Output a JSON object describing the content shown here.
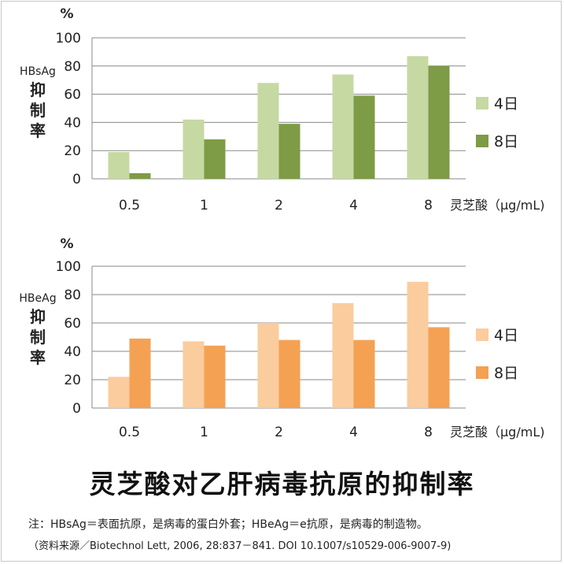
{
  "chart_data": [
    {
      "type": "bar",
      "unit_label": "%",
      "ylabel": "HBsAg 抑制率",
      "ylabel_top": "HBsAg",
      "ylabel_chars": [
        "抑",
        "制",
        "率"
      ],
      "xlabel": "灵芝酸（μg/mL)",
      "categories": [
        "0.5",
        "1",
        "2",
        "4",
        "8"
      ],
      "series": [
        {
          "name": "4日",
          "values": [
            19,
            42,
            68,
            74,
            87
          ],
          "color": "#c6d9a3"
        },
        {
          "name": "8日",
          "values": [
            4,
            28,
            39,
            59,
            80
          ],
          "color": "#7e9b45"
        }
      ],
      "yticks": [
        "0",
        "20",
        "40",
        "60",
        "80",
        "100"
      ],
      "ylim": [
        0,
        100
      ],
      "grid": true,
      "legend": "right"
    },
    {
      "type": "bar",
      "unit_label": "%",
      "ylabel": "HBeAg 抑制率",
      "ylabel_top": "HBeAg",
      "ylabel_chars": [
        "抑",
        "制",
        "率"
      ],
      "xlabel": "灵芝酸（μg/mL)",
      "categories": [
        "0.5",
        "1",
        "2",
        "4",
        "8"
      ],
      "series": [
        {
          "name": "4日",
          "values": [
            22,
            47,
            60,
            74,
            89
          ],
          "color": "#fbcc9d"
        },
        {
          "name": "8日",
          "values": [
            49,
            44,
            48,
            48,
            57
          ],
          "color": "#f4a154"
        }
      ],
      "yticks": [
        "0",
        "20",
        "40",
        "60",
        "80",
        "100"
      ],
      "ylim": [
        0,
        100
      ],
      "grid": true,
      "legend": "right"
    }
  ],
  "title": "灵芝酸对乙肝病毒抗原的抑制率",
  "note": "注：HBsAg＝表面抗原，是病毒的蛋白外套；HBeAg＝e抗原，是病毒的制造物。",
  "source": "（资料来源／Biotechnol Lett, 2006, 28:837－841. DOI 10.1007/s10529-006-9007-9)"
}
